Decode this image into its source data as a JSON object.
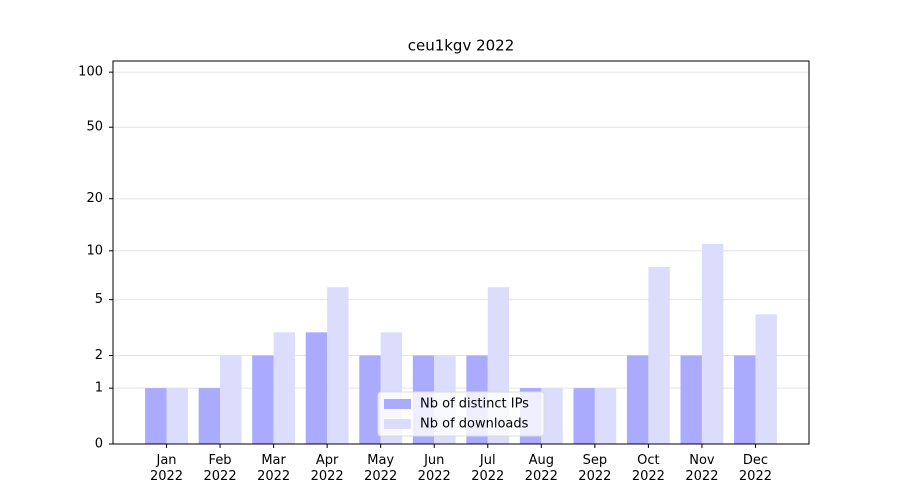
{
  "chart_data": {
    "type": "bar",
    "title": "ceu1kgv 2022",
    "categories": [
      "Jan 2022",
      "Feb 2022",
      "Mar 2022",
      "Apr 2022",
      "May 2022",
      "Jun 2022",
      "Jul 2022",
      "Aug 2022",
      "Sep 2022",
      "Oct 2022",
      "Nov 2022",
      "Dec 2022"
    ],
    "series": [
      {
        "name": "Nb of distinct IPs",
        "color": "#aaaaff",
        "values": [
          1,
          1,
          2,
          3,
          2,
          2,
          2,
          1,
          1,
          2,
          2,
          2
        ]
      },
      {
        "name": "Nb of downloads",
        "color": "#dcdcfc",
        "values": [
          1,
          2,
          3,
          6,
          3,
          2,
          6,
          1,
          1,
          8,
          11,
          4
        ]
      }
    ],
    "yscale": "log1p",
    "ylim": [
      0,
      115
    ],
    "yticks": [
      0,
      1,
      2,
      5,
      10,
      20,
      50,
      100
    ],
    "grid": true,
    "legend": "lower center"
  }
}
